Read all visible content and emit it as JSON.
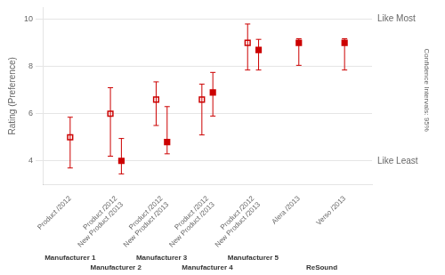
{
  "chart_data": {
    "type": "scatter",
    "categories": [
      "Product /2012",
      "Product /2012\nNew Product /2013",
      "Product /2012\nNew Product /2013",
      "Product /2012\nNew Product /2013",
      "Product /2012\nNew Product /2013",
      "Alera /2013",
      "Verso /2013"
    ],
    "groups": [
      "Manufacturer 1",
      "Manufacturer 2",
      "Manufacturer 3",
      "Manufacturer 4",
      "Manufacturer 5",
      "ReSound",
      "ReSound"
    ],
    "series": [
      {
        "color": "#cc0000",
        "marker": "open_square",
        "values": [
          5.0,
          6.0,
          6.6,
          6.6,
          9.0,
          null,
          null
        ],
        "errors": [
          [
            1.3,
            0.85
          ],
          [
            1.8,
            1.1
          ],
          [
            1.1,
            0.75
          ],
          [
            1.5,
            0.65
          ],
          [
            1.15,
            0.8
          ],
          null,
          null
        ]
      },
      {
        "color": "#cc0000",
        "marker": "square",
        "values": [
          null,
          4.0,
          4.8,
          6.9,
          8.7,
          9.0,
          9.0
        ],
        "errors": [
          null,
          [
            0.55,
            0.95
          ],
          [
            0.5,
            1.5
          ],
          [
            1.0,
            0.85
          ],
          [
            0.85,
            0.45
          ],
          [
            0.95,
            0.18
          ],
          [
            1.15,
            0.18
          ]
        ]
      }
    ],
    "ylabel": "Rating (Preference)",
    "ylim": [
      3.0,
      10.5
    ],
    "yticks": [
      4,
      6,
      8,
      10
    ],
    "grid": "y",
    "annotations": [
      {
        "text": "Like Most",
        "y": 10
      },
      {
        "text": "Like Least",
        "y": 4
      },
      {
        "text": "Confidence Intervals: 95%"
      }
    ]
  }
}
